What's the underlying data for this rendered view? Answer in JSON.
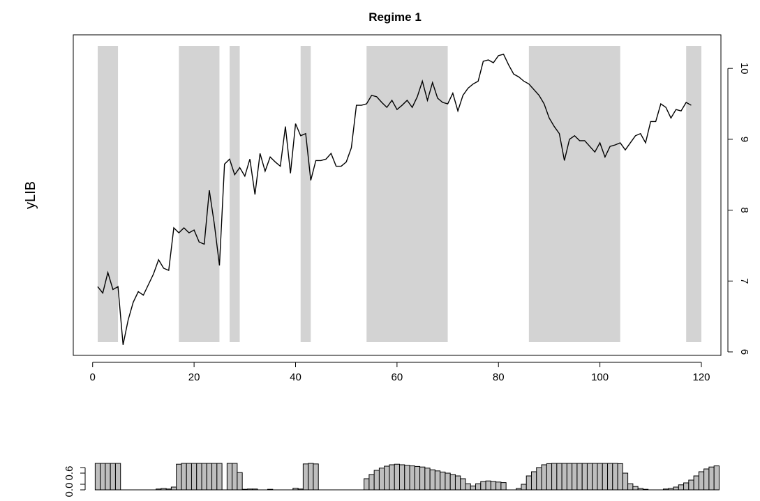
{
  "chart_data": [
    {
      "type": "line",
      "title": "Regime 1",
      "ylabel": "yLIB",
      "xlabel": "",
      "xlim": [
        0,
        122
      ],
      "ylim": [
        6,
        10.4
      ],
      "x_ticks": [
        0,
        20,
        40,
        60,
        80,
        100,
        120
      ],
      "y_ticks": [
        6,
        7,
        8,
        9,
        10
      ],
      "y_axis_side": "right",
      "shade_color": "#d3d3d3",
      "line_color": "#000000",
      "regime_shading": [
        [
          1,
          5
        ],
        [
          17,
          25
        ],
        [
          27,
          29
        ],
        [
          41,
          43
        ],
        [
          54,
          70
        ],
        [
          86,
          104
        ],
        [
          117,
          120
        ]
      ],
      "series": [
        {
          "values": [
            6.92,
            6.83,
            7.12,
            6.88,
            6.92,
            6.1,
            6.45,
            6.7,
            6.85,
            6.8,
            6.95,
            7.1,
            7.3,
            7.18,
            7.15,
            7.75,
            7.68,
            7.75,
            7.68,
            7.72,
            7.55,
            7.52,
            8.28,
            7.8,
            7.22,
            8.65,
            8.72,
            8.5,
            8.6,
            8.48,
            8.72,
            8.22,
            8.8,
            8.55,
            8.75,
            8.68,
            8.62,
            9.18,
            8.52,
            9.22,
            9.05,
            9.08,
            8.42,
            8.7,
            8.7,
            8.72,
            8.8,
            8.62,
            8.62,
            8.68,
            8.88,
            9.48,
            9.48,
            9.5,
            9.62,
            9.6,
            9.52,
            9.45,
            9.55,
            9.42,
            9.48,
            9.55,
            9.45,
            9.6,
            9.82,
            9.55,
            9.8,
            9.58,
            9.52,
            9.5,
            9.65,
            9.4,
            9.62,
            9.72,
            9.78,
            9.82,
            10.1,
            10.12,
            10.08,
            10.18,
            10.2,
            10.05,
            9.92,
            9.88,
            9.82,
            9.78,
            9.7,
            9.62,
            9.5,
            9.3,
            9.18,
            9.08,
            8.7,
            9.0,
            9.05,
            8.98,
            8.98,
            8.9,
            8.82,
            8.95,
            8.75,
            8.9,
            8.92,
            8.95,
            8.85,
            8.95,
            9.05,
            9.08,
            8.95,
            9.25,
            9.25,
            9.5,
            9.45,
            9.3,
            9.42,
            9.4,
            9.52,
            9.48
          ]
        }
      ]
    },
    {
      "type": "bar",
      "title": "",
      "xlabel": "",
      "ylabel": "",
      "ylim": [
        0,
        0.95
      ],
      "y_ticks": [
        0.0,
        0.2,
        0.6,
        0.8
      ],
      "y_tick_labels": [
        "0.0",
        "",
        "0.6",
        ""
      ],
      "y_axis_side": "left",
      "bar_color": "#bebebe",
      "values": [
        0.95,
        0.95,
        0.95,
        0.95,
        0.95,
        0,
        0,
        0,
        0,
        0,
        0,
        0,
        0.03,
        0.05,
        0.03,
        0.1,
        0.92,
        0.95,
        0.95,
        0.95,
        0.95,
        0.95,
        0.95,
        0.95,
        0.95,
        0,
        0.95,
        0.95,
        0.62,
        0.02,
        0.03,
        0.03,
        0,
        0,
        0.02,
        0,
        0,
        0,
        0,
        0.06,
        0.03,
        0.93,
        0.95,
        0.93,
        0,
        0,
        0,
        0,
        0,
        0,
        0,
        0,
        0,
        0.4,
        0.55,
        0.7,
        0.78,
        0.85,
        0.9,
        0.92,
        0.9,
        0.88,
        0.86,
        0.84,
        0.82,
        0.78,
        0.72,
        0.68,
        0.64,
        0.6,
        0.55,
        0.5,
        0.4,
        0.22,
        0.14,
        0.22,
        0.3,
        0.32,
        0.3,
        0.28,
        0.26,
        0,
        0,
        0.05,
        0.2,
        0.5,
        0.65,
        0.8,
        0.9,
        0.94,
        0.95,
        0.95,
        0.95,
        0.95,
        0.95,
        0.95,
        0.95,
        0.95,
        0.95,
        0.95,
        0.95,
        0.95,
        0.95,
        0.94,
        0.6,
        0.22,
        0.12,
        0.05,
        0.02,
        0,
        0,
        0,
        0.03,
        0.05,
        0.1,
        0.18,
        0.25,
        0.35,
        0.5,
        0.65,
        0.75,
        0.82,
        0.86
      ]
    }
  ]
}
